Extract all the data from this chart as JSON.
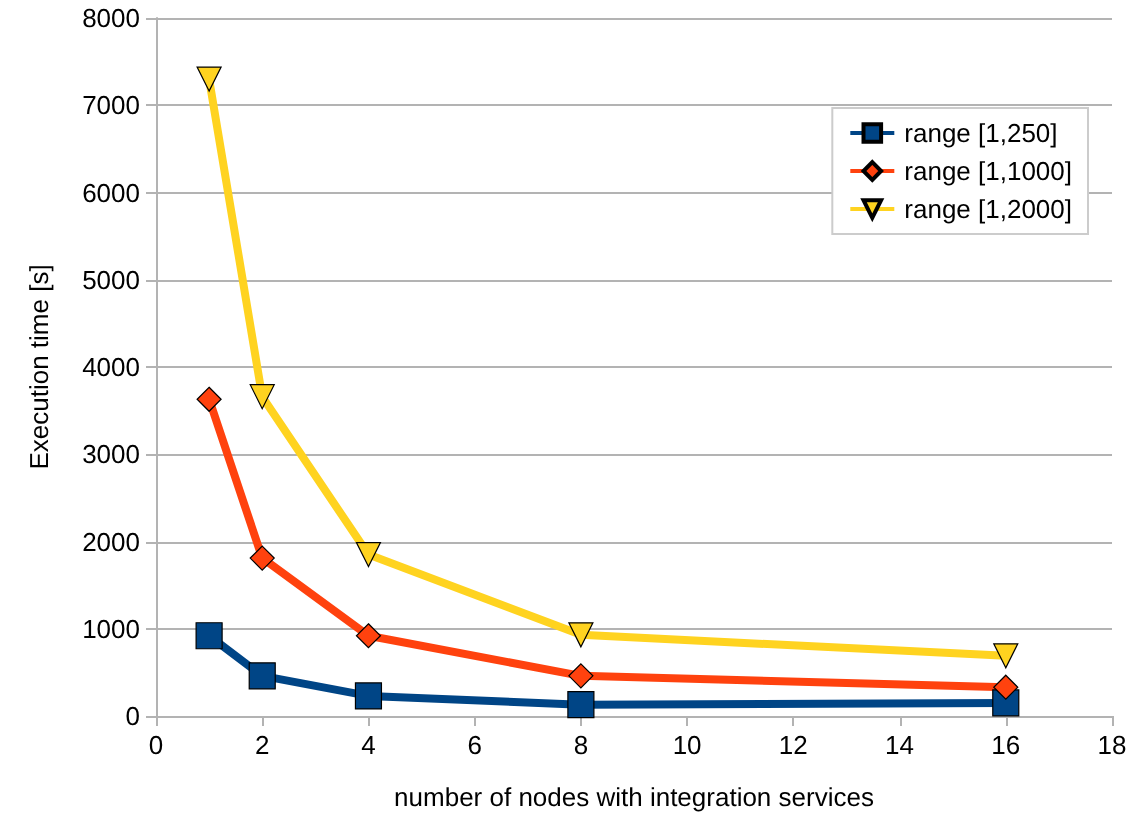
{
  "chart_data": {
    "type": "line",
    "xlabel": "number of nodes with integration services",
    "ylabel": "Execution time [s]",
    "x": [
      1,
      2,
      4,
      8,
      16
    ],
    "series": [
      {
        "name": "range [1,250]",
        "color": "#004586",
        "marker": "square",
        "values": [
          920,
          460,
          230,
          130,
          150
        ]
      },
      {
        "name": "range [1,1000]",
        "color": "#ff420e",
        "marker": "diamond",
        "values": [
          3630,
          1810,
          920,
          460,
          330
        ]
      },
      {
        "name": "range [1,2000]",
        "color": "#ffd320",
        "marker": "triangle",
        "values": [
          7300,
          3660,
          1850,
          930,
          690
        ]
      }
    ],
    "xlim": [
      0,
      18
    ],
    "xticks": [
      0,
      2,
      4,
      6,
      8,
      10,
      12,
      14,
      16,
      18
    ],
    "ylim": [
      0,
      8000
    ],
    "yticks": [
      0,
      1000,
      2000,
      3000,
      4000,
      5000,
      6000,
      7000,
      8000
    ],
    "grid": "y",
    "legend": "top right"
  }
}
